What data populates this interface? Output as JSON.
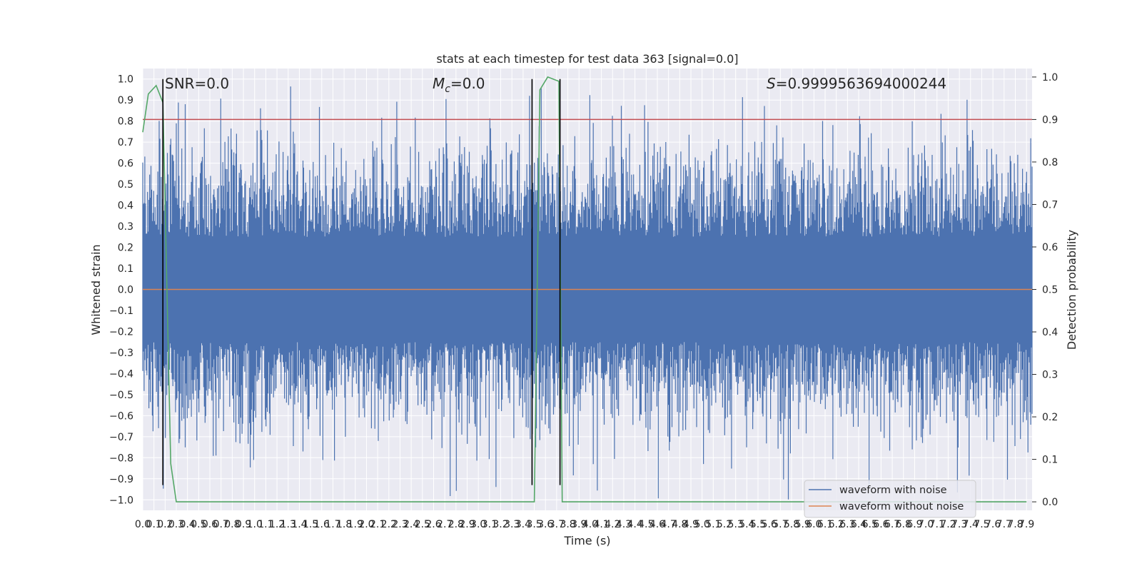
{
  "chart_data": {
    "type": "line",
    "title": "stats at each timestep for test data 363 [signal=0.0]",
    "xlabel": "Time (s)",
    "ylabel": "Whitened strain",
    "y2label": "Detection probability",
    "xlim": [
      0.0,
      7.95
    ],
    "ylim": [
      -1.05,
      1.05
    ],
    "y2lim": [
      -0.02,
      1.02
    ],
    "x_ticks": [
      "0.0",
      "0.1",
      "0.2",
      "0.3",
      "0.4",
      "0.5",
      "0.6",
      "0.7",
      "0.8",
      "0.9",
      "1.0",
      "1.1",
      "1.2",
      "1.3",
      "1.4",
      "1.5",
      "1.6",
      "1.7",
      "1.8",
      "1.9",
      "2.0",
      "2.1",
      "2.2",
      "2.3",
      "2.4",
      "2.5",
      "2.6",
      "2.7",
      "2.8",
      "2.9",
      "3.0",
      "3.1",
      "3.2",
      "3.3",
      "3.4",
      "3.5",
      "3.6",
      "3.7",
      "3.8",
      "3.9",
      "4.0",
      "4.1",
      "4.2",
      "4.3",
      "4.4",
      "4.5",
      "4.6",
      "4.7",
      "4.8",
      "4.9",
      "5.0",
      "5.1",
      "5.2",
      "5.3",
      "5.4",
      "5.5",
      "5.6",
      "5.7",
      "5.8",
      "5.9",
      "6.0",
      "6.1",
      "6.2",
      "6.3",
      "6.4",
      "6.5",
      "6.6",
      "6.7",
      "6.8",
      "6.9",
      "7.0",
      "7.1",
      "7.2",
      "7.3",
      "7.4",
      "7.5",
      "7.6",
      "7.7",
      "7.8",
      "7.9"
    ],
    "y_ticks": [
      "1.0",
      "0.9",
      "0.8",
      "0.7",
      "0.6",
      "0.5",
      "0.4",
      "0.3",
      "0.2",
      "0.1",
      "0.0",
      "−0.1",
      "−0.2",
      "−0.3",
      "−0.4",
      "−0.5",
      "−0.6",
      "−0.7",
      "−0.8",
      "−0.9",
      "−1.0"
    ],
    "y2_ticks": [
      "1.0",
      "0.9",
      "0.8",
      "0.7",
      "0.6",
      "0.5",
      "0.4",
      "0.3",
      "0.2",
      "0.1",
      "0.0"
    ],
    "annotations": {
      "snr": "SNR=0.0",
      "mc_symbol": "M",
      "mc_sub": "c",
      "mc_value": "=0.0",
      "s_symbol": "S",
      "s_value": "=0.9999563694000244"
    },
    "grid": true,
    "legend_position": "lower-right",
    "series": [
      {
        "name": "waveform with noise",
        "color": "#4c72b0",
        "kind": "noise-band",
        "typical_range": [
          -0.45,
          0.45
        ],
        "extremes": [
          -1.0,
          1.0
        ]
      },
      {
        "name": "waveform without noise",
        "color": "#dd8452",
        "kind": "constant",
        "y": 0.0
      }
    ],
    "detection_probability": {
      "color": "#55a868",
      "x": [
        0.0,
        0.05,
        0.12,
        0.18,
        0.25,
        0.3,
        3.45,
        3.5,
        3.55,
        3.62,
        3.72,
        3.75,
        3.8,
        3.85,
        7.9
      ],
      "y": [
        0.87,
        0.96,
        0.98,
        0.94,
        0.09,
        0.0,
        0.0,
        0.0,
        0.97,
        1.0,
        0.99,
        0.0,
        0.0,
        0.0,
        0.0
      ]
    },
    "threshold_line": {
      "color": "#c44e52",
      "y2": 0.9
    },
    "vertical_markers": {
      "color": "#000000",
      "x": [
        0.18,
        3.48,
        3.73
      ]
    }
  }
}
